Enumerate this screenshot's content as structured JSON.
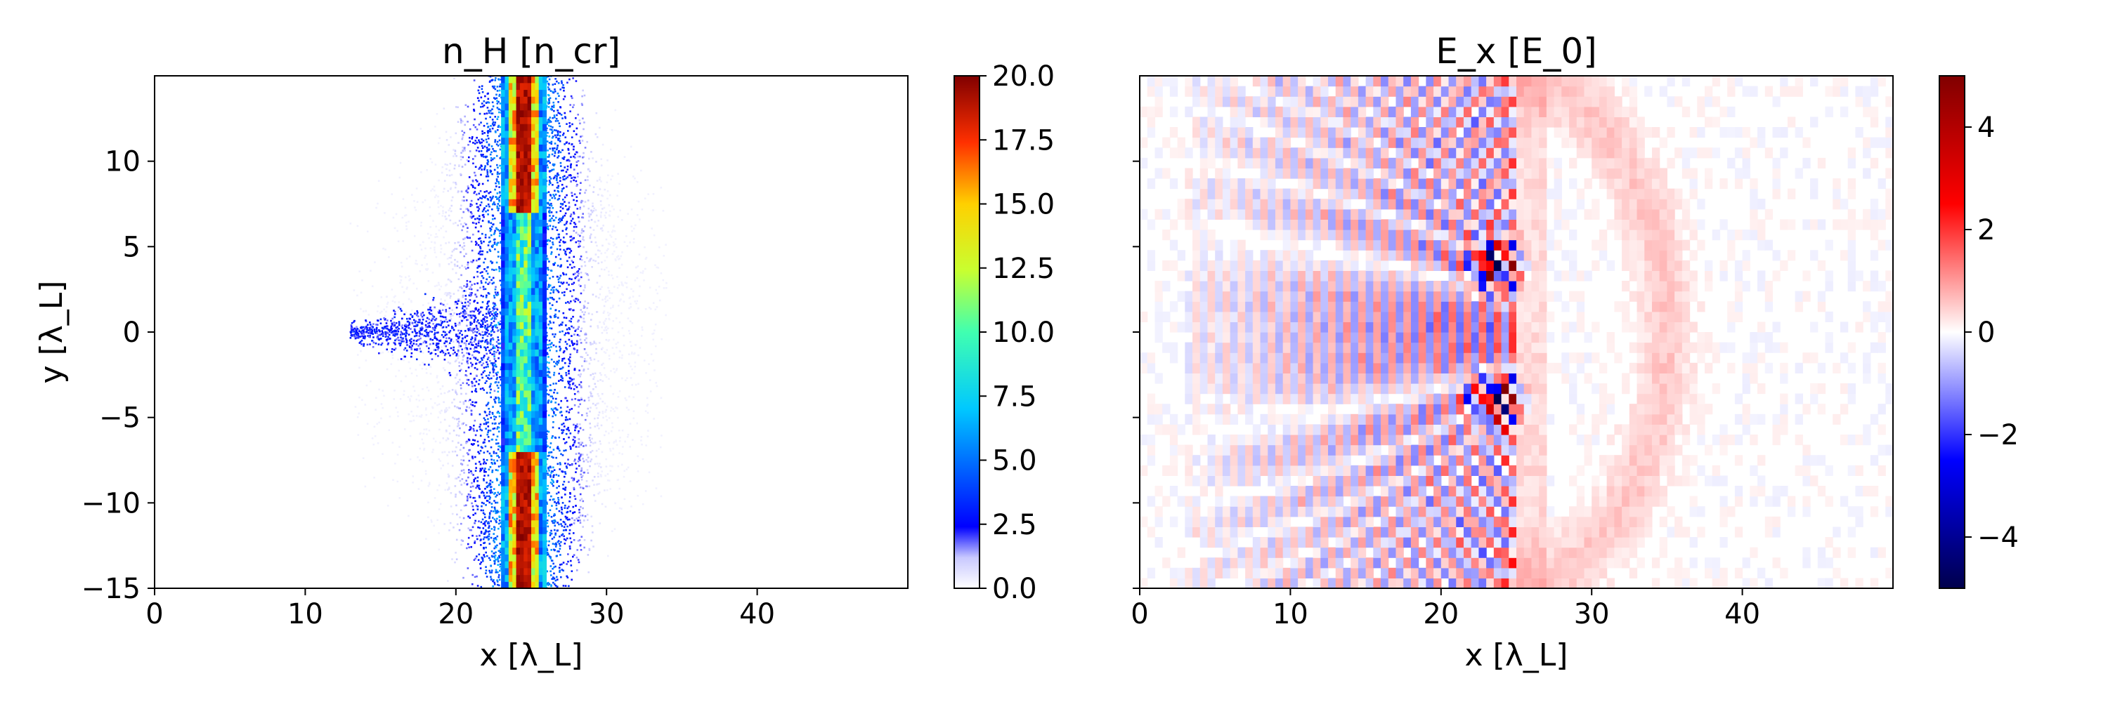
{
  "figure": {
    "panels": [
      {
        "title": "n_H [n_cr]",
        "xlabel": "x [λ_L]",
        "ylabel": "y [λ_L]"
      },
      {
        "title": "E_x [E_0]",
        "xlabel": "x [λ_L]",
        "ylabel": ""
      }
    ]
  },
  "chart_data": [
    {
      "type": "heatmap",
      "title": "n_H [n_cr]",
      "xlabel": "x [λ_L]",
      "ylabel": "y [λ_L]",
      "xlim": [
        0,
        50
      ],
      "ylim": [
        -15,
        15
      ],
      "xticks": [
        0,
        10,
        20,
        30,
        40
      ],
      "xtick_labels": [
        "0",
        "10",
        "20",
        "30",
        "40"
      ],
      "yticks": [
        -15,
        -10,
        -5,
        0,
        5,
        10
      ],
      "ytick_labels": [
        "−15",
        "−10",
        "−5",
        "0",
        "5",
        "10"
      ],
      "colorbar": {
        "cmap": "jet-white-low",
        "range": [
          0,
          20
        ],
        "ticks": [
          0,
          2.5,
          5,
          7.5,
          10,
          12.5,
          15,
          17.5,
          20
        ],
        "tick_labels": [
          "0.0",
          "2.5",
          "5.0",
          "7.5",
          "10.0",
          "12.5",
          "15.0",
          "17.5",
          "20.0"
        ]
      },
      "features": {
        "dense_slab_x": [
          24,
          25
        ],
        "dense_slab_y_intervals": [
          [
            -15,
            -7
          ],
          [
            7,
            15
          ]
        ],
        "slab_peak_density": 20,
        "scatter_x_range": [
          13,
          34
        ],
        "jet_toward_negative_x_at_y": 0
      },
      "grid": false
    },
    {
      "type": "heatmap",
      "title": "E_x [E_0]",
      "xlabel": "x [λ_L]",
      "ylabel": "",
      "xlim": [
        0,
        50
      ],
      "ylim": [
        -15,
        15
      ],
      "xticks": [
        0,
        10,
        20,
        30,
        40
      ],
      "xtick_labels": [
        "0",
        "10",
        "20",
        "30",
        "40"
      ],
      "yticks": [
        -15,
        -10,
        -5,
        0,
        5,
        10
      ],
      "ytick_labels": [],
      "colorbar": {
        "cmap": "seismic",
        "range": [
          -5,
          5
        ],
        "ticks": [
          -4,
          -2,
          0,
          2,
          4
        ],
        "tick_labels": [
          "−4",
          "−2",
          "0",
          "2",
          "4"
        ]
      },
      "features": {
        "wave_region_x": [
          0,
          25
        ],
        "strong_field_centers": [
          [
            23.5,
            4
          ],
          [
            23.5,
            -4
          ]
        ],
        "strong_field_peak": 5,
        "weak_positive_arc_center_x": 23,
        "weak_positive_arc_radius": 12
      },
      "grid": false
    }
  ]
}
